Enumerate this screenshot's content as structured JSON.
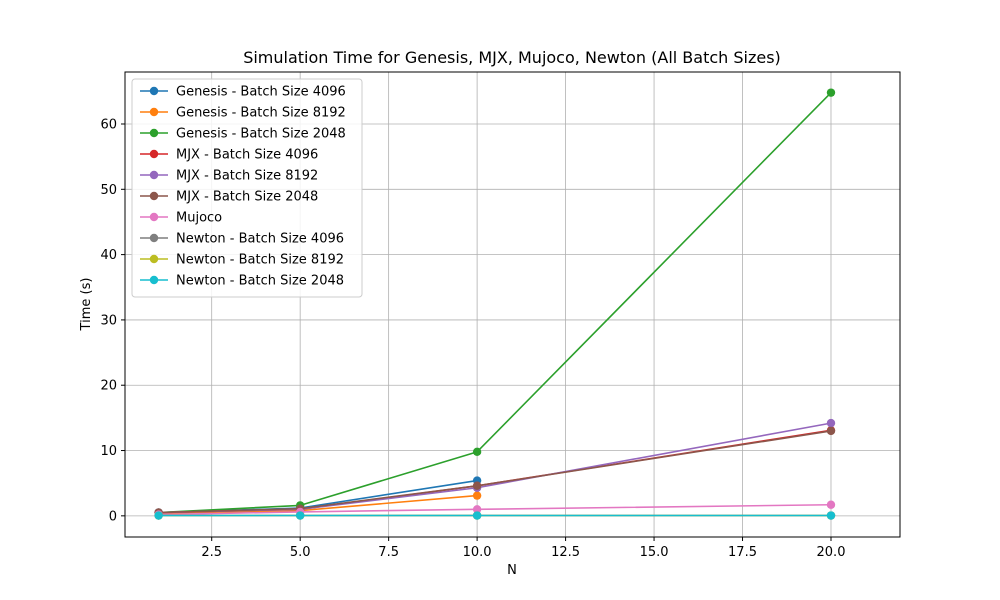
{
  "chart_data": {
    "type": "line",
    "title": "Simulation Time for Genesis, MJX, Mujoco, Newton (All Batch Sizes)",
    "xlabel": "N",
    "ylabel": "Time (s)",
    "xlim": [
      0.05,
      21.95
    ],
    "ylim": [
      -3.24,
      67.96
    ],
    "xticks": [
      2.5,
      5.0,
      7.5,
      10.0,
      12.5,
      15.0,
      17.5,
      20.0
    ],
    "xtick_labels": [
      "2.5",
      "5.0",
      "7.5",
      "10.0",
      "12.5",
      "15.0",
      "17.5",
      "20.0"
    ],
    "yticks": [
      0,
      10,
      20,
      30,
      40,
      50,
      60
    ],
    "ytick_labels": [
      "0",
      "10",
      "20",
      "30",
      "40",
      "50",
      "60"
    ],
    "grid": true,
    "legend_position": "top-left",
    "series": [
      {
        "name": "Genesis - Batch Size 4096",
        "color": "#1f77b4",
        "x": [
          1,
          5,
          10
        ],
        "y": [
          0.5,
          1.2,
          5.4
        ]
      },
      {
        "name": "Genesis - Batch Size 8192",
        "color": "#ff7f0e",
        "x": [
          1,
          5,
          10
        ],
        "y": [
          0.4,
          0.8,
          3.1
        ]
      },
      {
        "name": "Genesis - Batch Size 2048",
        "color": "#2ca02c",
        "x": [
          1,
          5,
          10,
          20
        ],
        "y": [
          0.5,
          1.6,
          9.8,
          64.8
        ]
      },
      {
        "name": "MJX - Batch Size 4096",
        "color": "#d62728",
        "x": [
          1,
          5,
          10,
          20
        ],
        "y": [
          0.5,
          1.0,
          4.6,
          13.1
        ]
      },
      {
        "name": "MJX - Batch Size 8192",
        "color": "#9467bd",
        "x": [
          1,
          5,
          10,
          20
        ],
        "y": [
          0.5,
          1.0,
          4.3,
          14.2
        ]
      },
      {
        "name": "MJX - Batch Size 2048",
        "color": "#8c564b",
        "x": [
          1,
          5,
          10,
          20
        ],
        "y": [
          0.5,
          1.1,
          4.6,
          13.0
        ]
      },
      {
        "name": "Mujoco",
        "color": "#e377c2",
        "x": [
          1,
          5,
          10,
          20
        ],
        "y": [
          0.2,
          0.6,
          1.0,
          1.7
        ]
      },
      {
        "name": "Newton - Batch Size 4096",
        "color": "#7f7f7f",
        "x": [
          1,
          5,
          10,
          20
        ],
        "y": [
          0.05,
          0.05,
          0.05,
          0.05
        ]
      },
      {
        "name": "Newton - Batch Size 8192",
        "color": "#bcbd22",
        "x": [
          1,
          5,
          10,
          20
        ],
        "y": [
          0.05,
          0.05,
          0.05,
          0.05
        ]
      },
      {
        "name": "Newton - Batch Size 2048",
        "color": "#17becf",
        "x": [
          1,
          5,
          10,
          20
        ],
        "y": [
          0.05,
          0.05,
          0.05,
          0.05
        ]
      }
    ]
  }
}
